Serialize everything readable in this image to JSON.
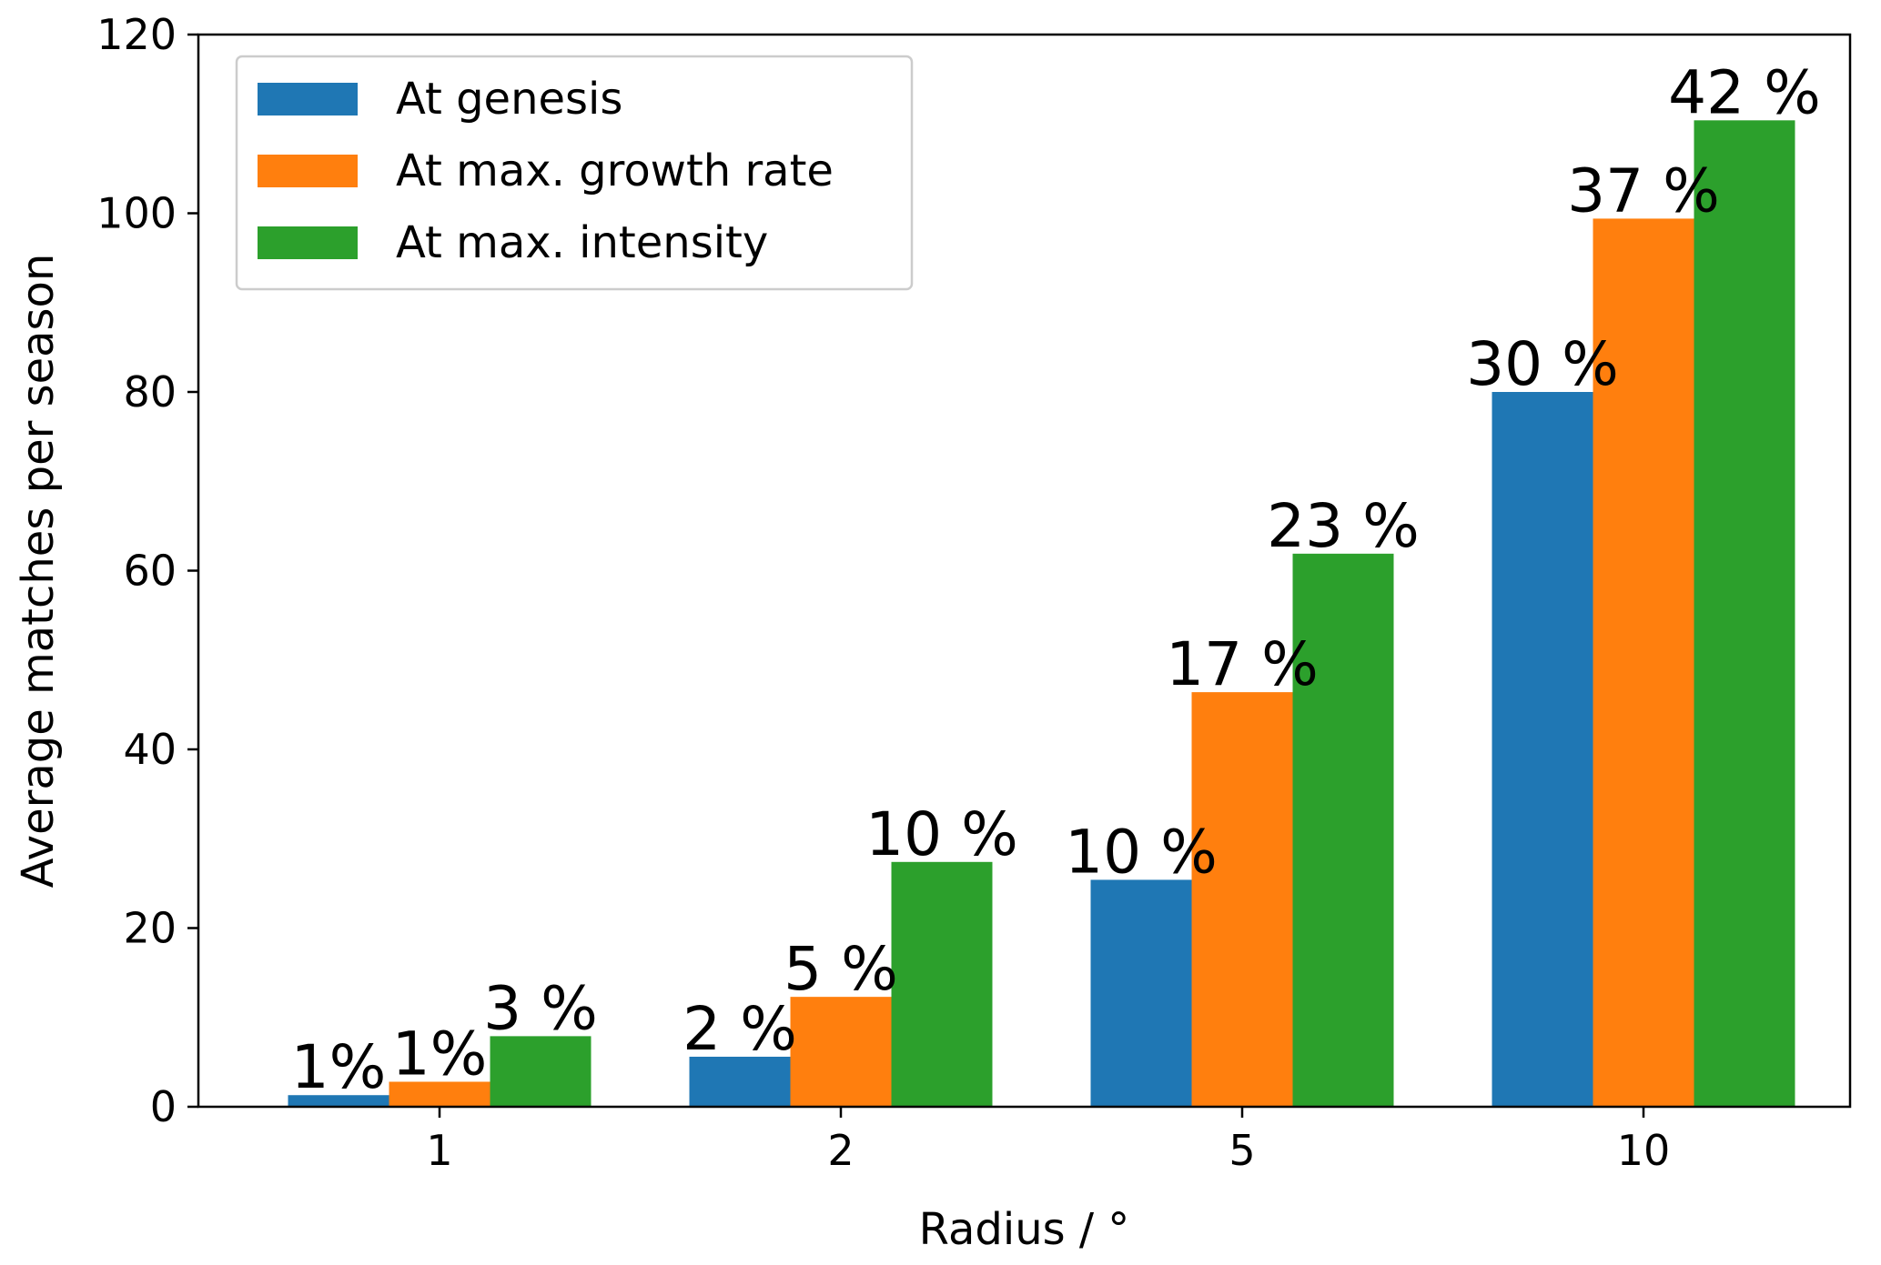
{
  "chart_data": {
    "type": "bar",
    "title": "",
    "xlabel": "Radius / °",
    "ylabel": "Average matches per season",
    "categories": [
      "1",
      "2",
      "5",
      "10"
    ],
    "ylim": [
      0,
      120
    ],
    "yticks": [
      0,
      20,
      40,
      60,
      80,
      100,
      120
    ],
    "grid": false,
    "legend_position": "top-left",
    "series": [
      {
        "name": "At genesis",
        "color": "#1f77b4",
        "values": [
          1.3,
          5.6,
          25.4,
          80.0
        ],
        "labels": [
          "1%",
          "2 %",
          "10 %",
          "30 %"
        ]
      },
      {
        "name": "At max. growth rate",
        "color": "#ff7f0e",
        "values": [
          2.8,
          12.3,
          46.4,
          99.4
        ],
        "labels": [
          "1%",
          "5 %",
          "17 %",
          "37 %"
        ]
      },
      {
        "name": "At max. intensity",
        "color": "#2ca02c",
        "values": [
          7.9,
          27.4,
          61.9,
          110.4
        ],
        "labels": [
          "3 %",
          "10 %",
          "23 %",
          "42 %"
        ]
      }
    ]
  }
}
